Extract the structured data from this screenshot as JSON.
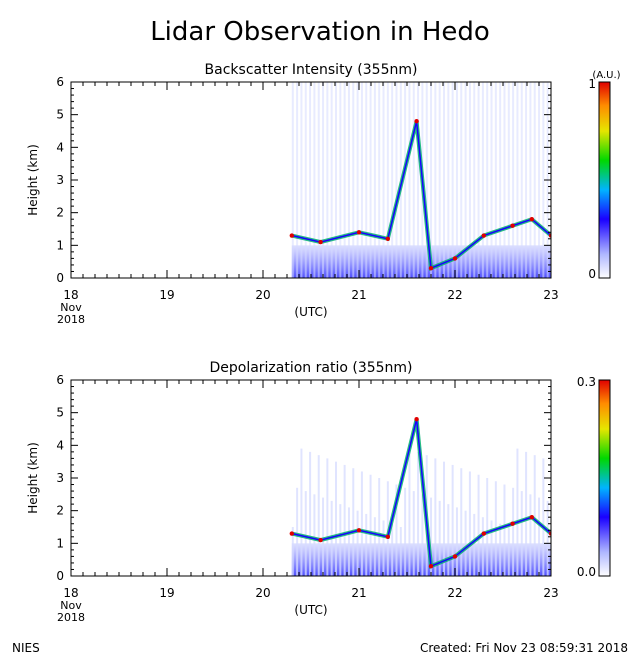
{
  "page": {
    "title": "Lidar Observation in Hedo",
    "footer_left": "NIES",
    "footer_right": "Created: Fri Nov 23 08:59:31 2018"
  },
  "chart_data": [
    {
      "type": "heatmap",
      "title": "Backscatter Intensity (355nm)",
      "ylabel": "Height (km)",
      "xlabel": "(UTC)",
      "xlim": [
        "2018-11-18T00:00",
        "2018-11-23T00:00"
      ],
      "ylim": [
        0,
        6
      ],
      "x_ticks": [
        "18",
        "19",
        "20",
        "21",
        "22",
        "23"
      ],
      "x_tick_sublabel": [
        "Nov",
        "2018"
      ],
      "y_ticks": [
        "0",
        "1",
        "2",
        "3",
        "4",
        "5",
        "6"
      ],
      "colorbar": {
        "unit": "(A.U.)",
        "min_label": "0",
        "max_label": "1",
        "range": [
          0,
          1
        ]
      },
      "data_start_day": 20.3,
      "cloud_layer": [
        [
          20.3,
          1.3
        ],
        [
          20.6,
          1.1
        ],
        [
          21.0,
          1.4
        ],
        [
          21.3,
          1.2
        ],
        [
          21.6,
          4.8
        ],
        [
          21.75,
          0.3
        ],
        [
          22.0,
          0.6
        ],
        [
          22.3,
          1.3
        ],
        [
          22.6,
          1.6
        ],
        [
          22.8,
          1.8
        ],
        [
          23.0,
          1.3
        ]
      ]
    },
    {
      "type": "heatmap",
      "title": "Depolarization ratio (355nm)",
      "ylabel": "Height (km)",
      "xlabel": "(UTC)",
      "xlim": [
        "2018-11-18T00:00",
        "2018-11-23T00:00"
      ],
      "ylim": [
        0,
        6
      ],
      "x_ticks": [
        "18",
        "19",
        "20",
        "21",
        "22",
        "23"
      ],
      "x_tick_sublabel": [
        "Nov",
        "2018"
      ],
      "y_ticks": [
        "0",
        "1",
        "2",
        "3",
        "4",
        "5",
        "6"
      ],
      "colorbar": {
        "unit": "",
        "min_label": "0.0",
        "max_label": "0.3",
        "range": [
          0,
          0.3
        ]
      },
      "data_start_day": 20.3,
      "cloud_layer": [
        [
          20.3,
          1.3
        ],
        [
          20.6,
          1.1
        ],
        [
          21.0,
          1.4
        ],
        [
          21.3,
          1.2
        ],
        [
          21.6,
          4.8
        ],
        [
          21.75,
          0.3
        ],
        [
          22.0,
          0.6
        ],
        [
          22.3,
          1.3
        ],
        [
          22.6,
          1.6
        ],
        [
          22.8,
          1.8
        ],
        [
          23.0,
          1.3
        ]
      ]
    }
  ]
}
